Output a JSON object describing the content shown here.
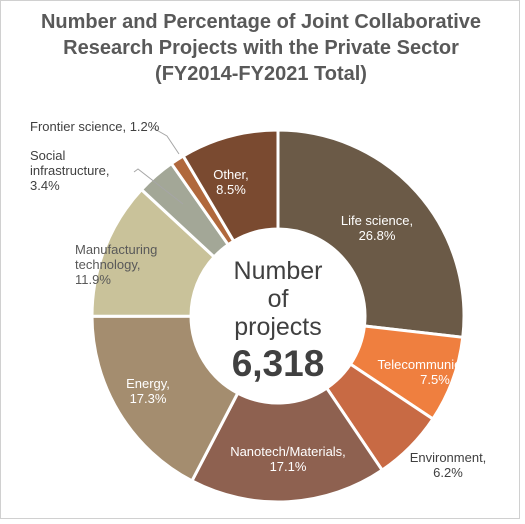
{
  "chart_data": {
    "type": "pie",
    "title_lines": [
      "Number and Percentage of Joint Collaborative",
      "Research Projects with the Private Sector",
      "(FY2014-FY2021 Total)"
    ],
    "center_label_lines": [
      "Number",
      "of",
      "projects"
    ],
    "center_value": "6,318",
    "slices": [
      {
        "name": "Life science",
        "value": 26.8,
        "label_lines": [
          "Life science,",
          "26.8%"
        ],
        "color": "#6b5a47",
        "label_color": "#ffffff"
      },
      {
        "name": "Telecommunication",
        "value": 7.5,
        "label_lines": [
          "Telecommunication,",
          "7.5%"
        ],
        "color": "#ef7f3f",
        "label_color": "#ffffff"
      },
      {
        "name": "Environment",
        "value": 6.2,
        "label_lines": [
          "Environment,",
          "6.2%"
        ],
        "color": "#c86a44",
        "label_color": "#404040"
      },
      {
        "name": "Nanotech/Materials",
        "value": 17.1,
        "label_lines": [
          "Nanotech/Materials,",
          "17.1%"
        ],
        "color": "#8e6150",
        "label_color": "#ffffff"
      },
      {
        "name": "Energy",
        "value": 17.3,
        "label_lines": [
          "Energy,",
          "17.3%"
        ],
        "color": "#a48d6f",
        "label_color": "#ffffff"
      },
      {
        "name": "Manufacturing technology",
        "value": 11.9,
        "label_lines": [
          "Manufacturing",
          "technology,",
          "11.9%"
        ],
        "color": "#c9c29a",
        "label_color": "#595959"
      },
      {
        "name": "Social infrastructure",
        "value": 3.4,
        "label_lines": [
          "Social",
          "infrastructure,",
          "3.4%"
        ],
        "color": "#a3a797",
        "label_color": "#404040"
      },
      {
        "name": "Frontier science",
        "value": 1.2,
        "label_lines": [
          "Frontier science, 1.2%"
        ],
        "color": "#b0683c",
        "label_color": "#404040"
      },
      {
        "name": "Other",
        "value": 8.5,
        "label_lines": [
          "Other,",
          "8.5%"
        ],
        "color": "#7a4a30",
        "label_color": "#ffffff"
      }
    ]
  }
}
